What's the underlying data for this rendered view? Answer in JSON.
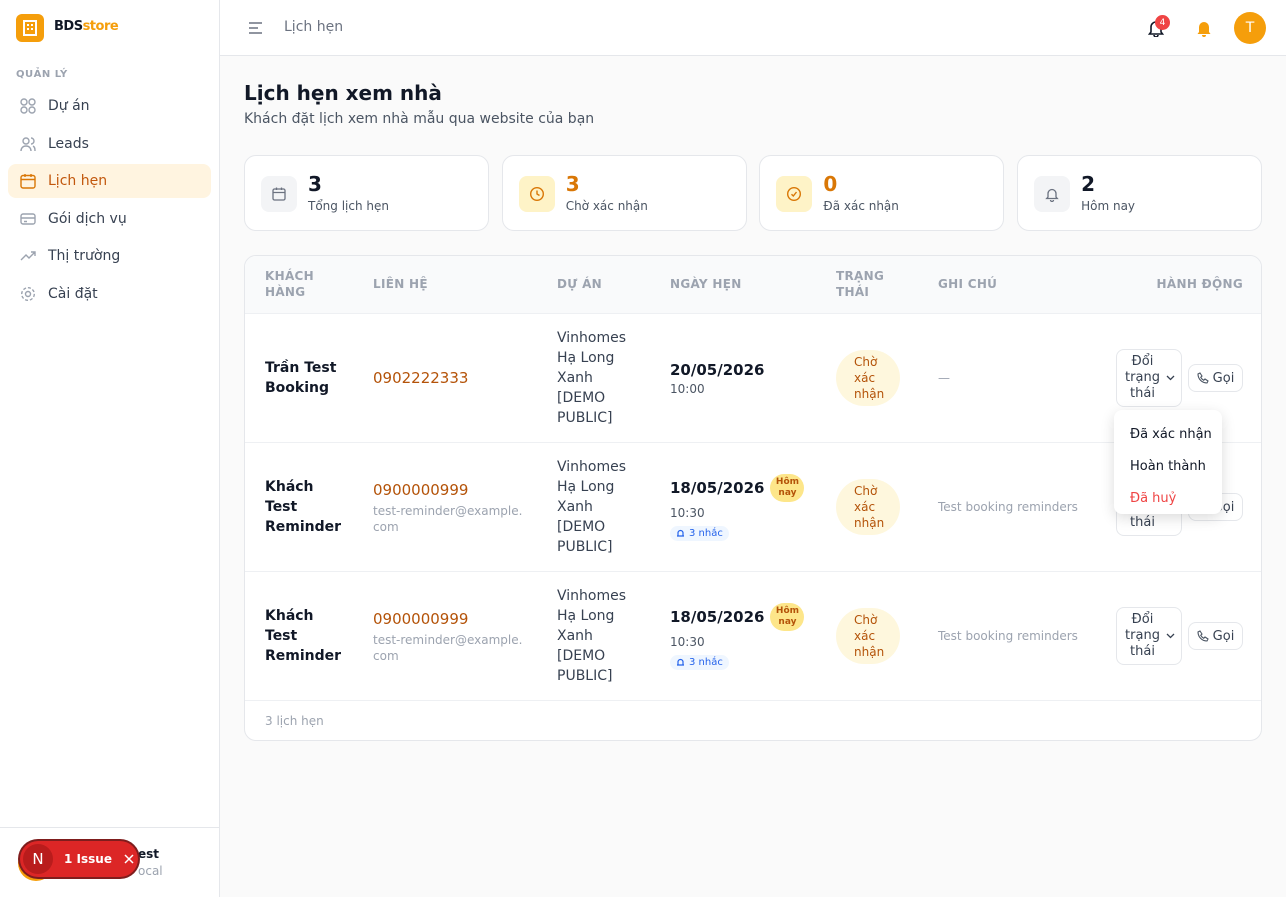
{
  "sidebar": {
    "logo": {
      "brand": "BDS",
      "brand_accent": "store"
    },
    "section": "QUẢN LÝ",
    "nav": [
      "Dự án",
      "Leads",
      "Lịch hẹn",
      "Gói dịch vụ",
      "Thị trường",
      "Cài đặt"
    ],
    "active_nav": 2,
    "user": {
      "name": "est",
      "sub": "ocal"
    }
  },
  "issue_badge": {
    "initial": "N",
    "label": "1 Issue"
  },
  "topbar": {
    "breadcrumb": "Lịch hẹn",
    "notification_count": 4,
    "avatar": "T"
  },
  "page": {
    "title": "Lịch hẹn xem nhà",
    "subtitle": "Khách đặt lịch xem nhà mẫu qua website của bạn"
  },
  "stats": [
    {
      "value": 3,
      "label": "Tổng lịch hẹn"
    },
    {
      "value": 3,
      "label": "Chờ xác nhận"
    },
    {
      "value": 0,
      "label": "Đã xác nhận"
    },
    {
      "value": 2,
      "label": "Hôm nay"
    }
  ],
  "table": {
    "headers": [
      "KHÁCH HÀNG",
      "LIÊN HỆ",
      "DỰ ÁN",
      "NGÀY HẸN",
      "TRẠNG THÁI",
      "GHI CHÚ",
      "HÀNH ĐỘNG"
    ],
    "actions": {
      "change_status": "Đổi trạng thái",
      "call": "Gọi"
    },
    "rows": [
      {
        "customer": "Trần Test Booking",
        "phone": "0902222333",
        "project": "Vinhomes Hạ Long Xanh [DEMO PUBLIC]",
        "date": "20/05/2026",
        "time": "10:00",
        "status": "Chờ xác nhận",
        "note": "—"
      },
      {
        "customer": "Khách Test Reminder",
        "phone": "0900000999",
        "email": "test-reminder@example.com",
        "project": "Vinhomes Hạ Long Xanh [DEMO PUBLIC]",
        "date": "18/05/2026",
        "today": "Hôm nay",
        "time": "10:30",
        "reminders": "3 nhắc",
        "status": "Chờ xác nhận",
        "note": "Test booking reminders"
      },
      {
        "customer": "Khách Test Reminder",
        "phone": "0900000999",
        "email": "test-reminder@example.com",
        "project": "Vinhomes Hạ Long Xanh [DEMO PUBLIC]",
        "date": "18/05/2026",
        "today": "Hôm nay",
        "time": "10:30",
        "reminders": "3 nhắc",
        "status": "Chờ xác nhận",
        "note": "Test booking reminders"
      }
    ],
    "footer": "3 lịch hẹn"
  },
  "dropdown": {
    "items": [
      "Đã xác nhận",
      "Hoàn thành",
      "Đã huỷ"
    ]
  }
}
